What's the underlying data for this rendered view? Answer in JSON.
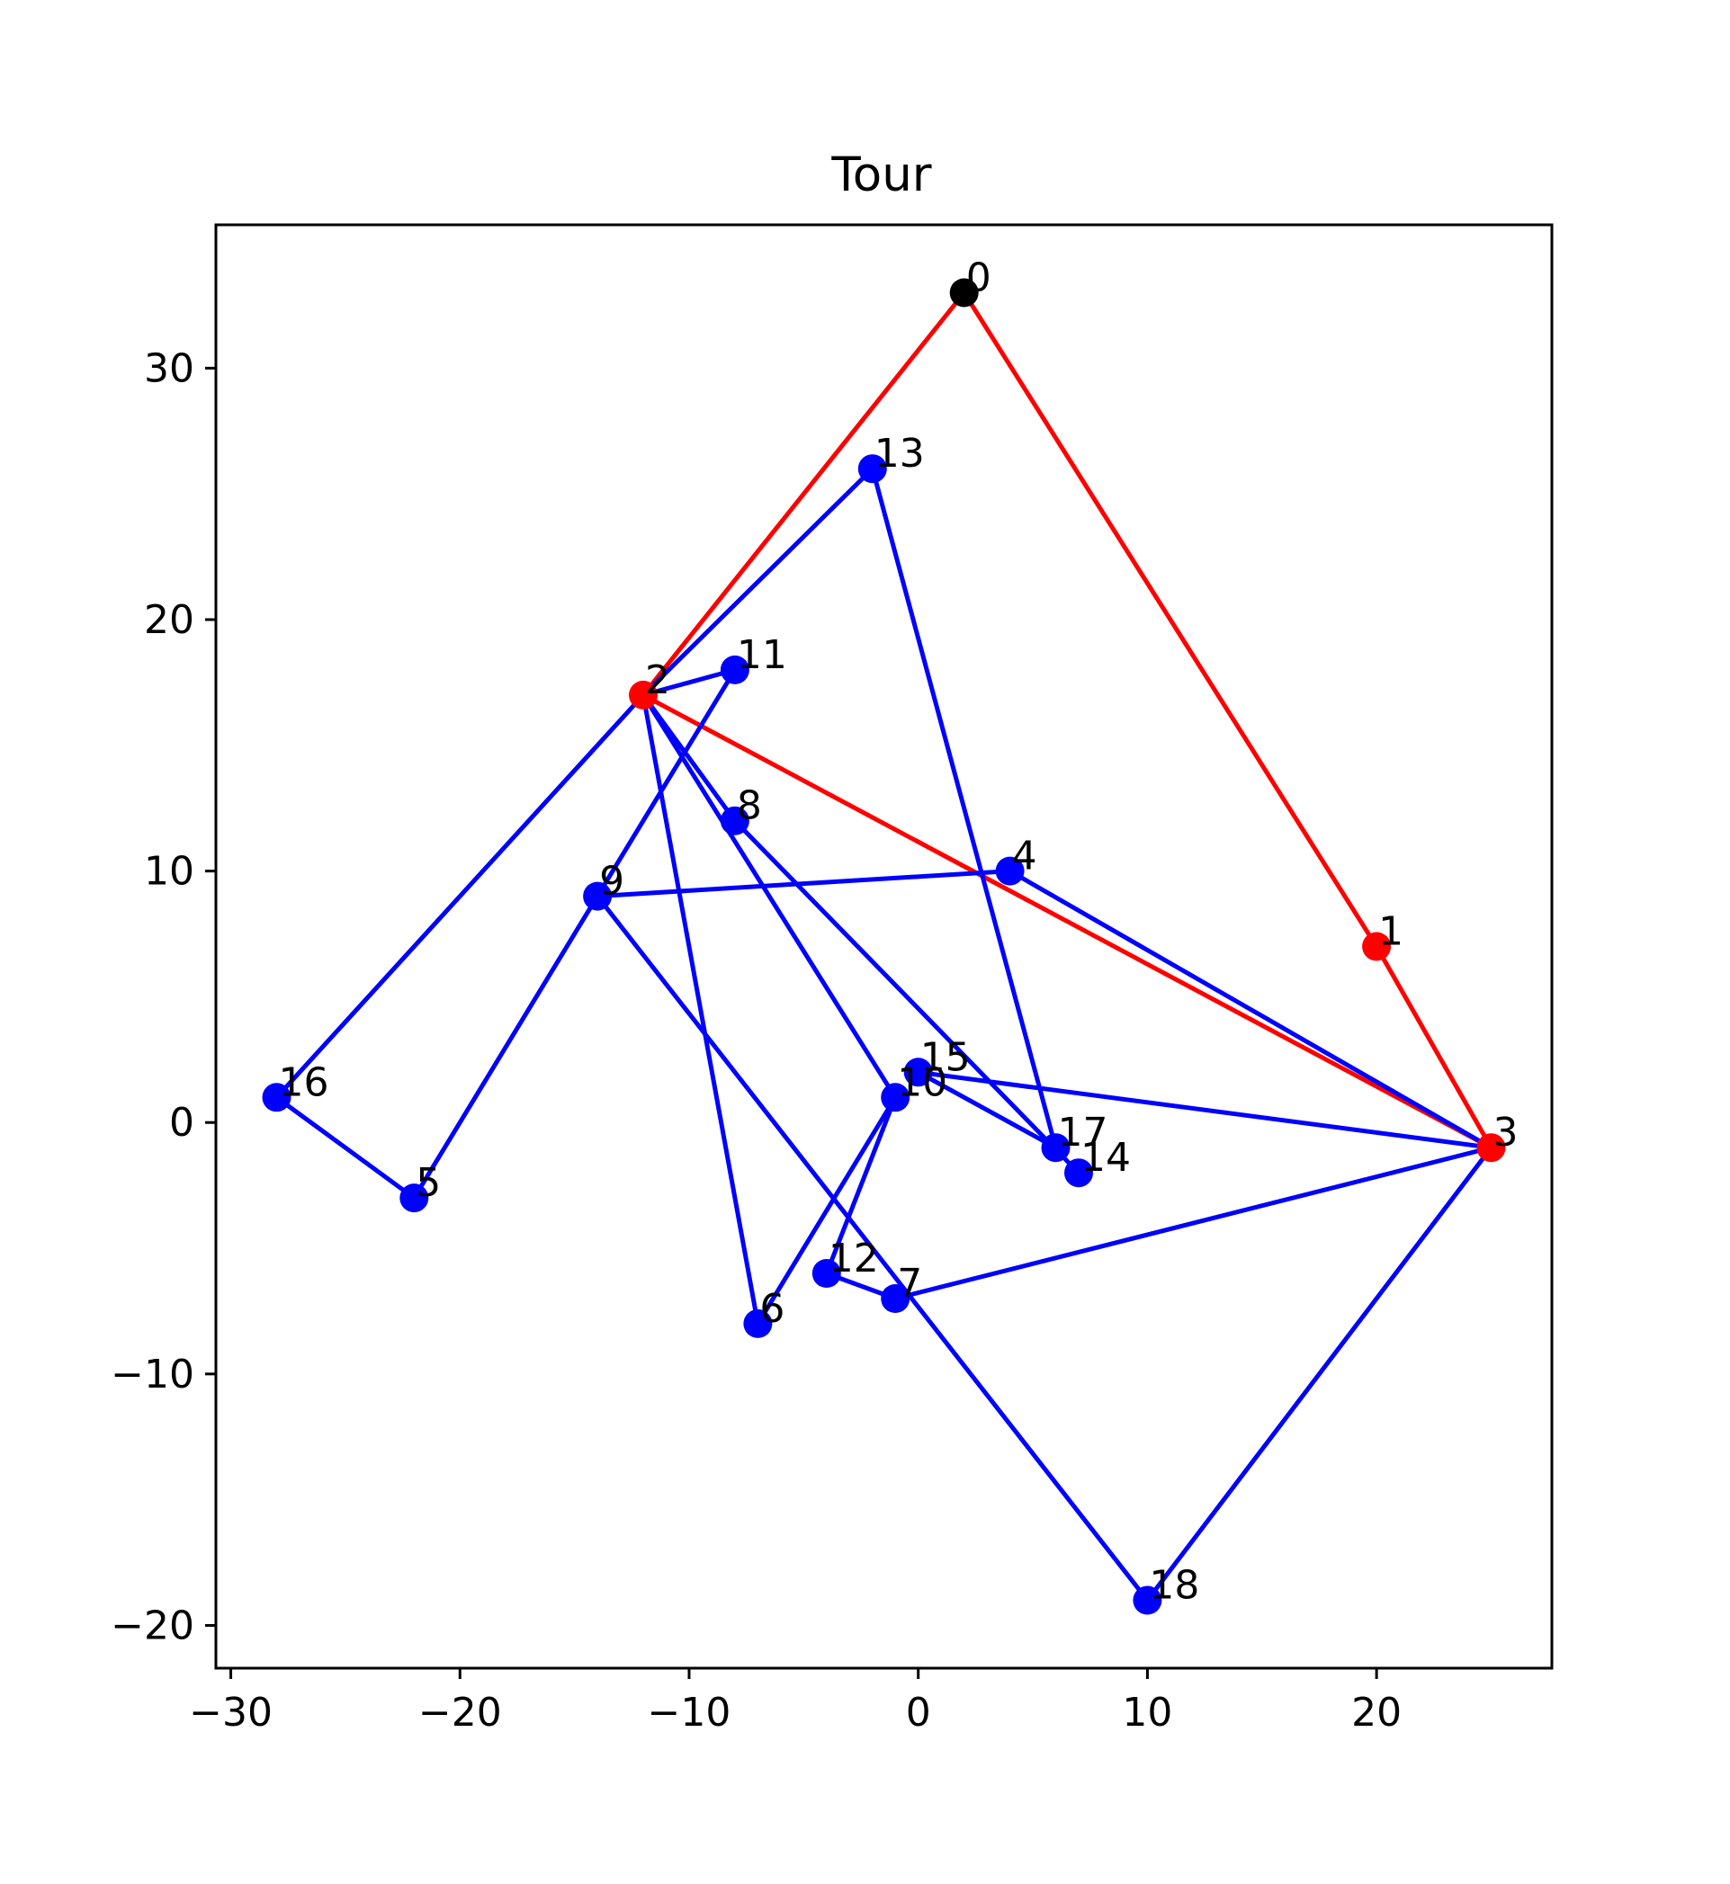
{
  "chart_data": {
    "type": "scatter",
    "title": "Tour",
    "xlabel": "",
    "ylabel": "",
    "xlim": [
      -30.65,
      27.65
    ],
    "ylim": [
      -21.7,
      35.7
    ],
    "xticks": [
      -30,
      -20,
      -10,
      0,
      10,
      20
    ],
    "yticks": [
      -20,
      -10,
      0,
      10,
      20,
      30
    ],
    "xtick_labels": [
      "−30",
      "−20",
      "−10",
      "0",
      "10",
      "20"
    ],
    "ytick_labels": [
      "−20",
      "−10",
      "0",
      "10",
      "20",
      "30"
    ],
    "grid": false,
    "colors": {
      "red": "#ff0000",
      "blue": "#0000ff",
      "depot": "#000000"
    },
    "points": [
      {
        "id": "0",
        "x": 2,
        "y": 33,
        "color": "#000000"
      },
      {
        "id": "1",
        "x": 20,
        "y": 7,
        "color": "#ff0000"
      },
      {
        "id": "2",
        "x": -12,
        "y": 17,
        "color": "#ff0000"
      },
      {
        "id": "3",
        "x": 25,
        "y": -1,
        "color": "#ff0000"
      },
      {
        "id": "4",
        "x": 4,
        "y": 10,
        "color": "#0000ff"
      },
      {
        "id": "5",
        "x": -22,
        "y": -3,
        "color": "#0000ff"
      },
      {
        "id": "6",
        "x": -7,
        "y": -8,
        "color": "#0000ff"
      },
      {
        "id": "7",
        "x": -1,
        "y": -7,
        "color": "#0000ff"
      },
      {
        "id": "8",
        "x": -8,
        "y": 12,
        "color": "#0000ff"
      },
      {
        "id": "9",
        "x": -14,
        "y": 9,
        "color": "#0000ff"
      },
      {
        "id": "10",
        "x": -1,
        "y": 1,
        "color": "#0000ff"
      },
      {
        "id": "11",
        "x": -8,
        "y": 18,
        "color": "#0000ff"
      },
      {
        "id": "12",
        "x": -4,
        "y": -6,
        "color": "#0000ff"
      },
      {
        "id": "13",
        "x": -2,
        "y": 26,
        "color": "#0000ff"
      },
      {
        "id": "14",
        "x": 7,
        "y": -2,
        "color": "#0000ff"
      },
      {
        "id": "15",
        "x": 0,
        "y": 2,
        "color": "#0000ff"
      },
      {
        "id": "16",
        "x": -28,
        "y": 1,
        "color": "#0000ff"
      },
      {
        "id": "17",
        "x": 6,
        "y": -1,
        "color": "#0000ff"
      },
      {
        "id": "18",
        "x": 10,
        "y": -19,
        "color": "#0000ff"
      }
    ],
    "routes": [
      {
        "color": "#ff0000",
        "path": [
          "0",
          "2",
          "3",
          "1",
          "0"
        ]
      },
      {
        "color": "#0000ff",
        "path": [
          "2",
          "13",
          "17",
          "15",
          "3",
          "4",
          "9",
          "18",
          "3",
          "7",
          "12",
          "10",
          "2",
          "8",
          "14"
        ]
      },
      {
        "color": "#0000ff",
        "path": [
          "2",
          "16",
          "5",
          "11",
          "2",
          "6",
          "10"
        ]
      }
    ]
  }
}
